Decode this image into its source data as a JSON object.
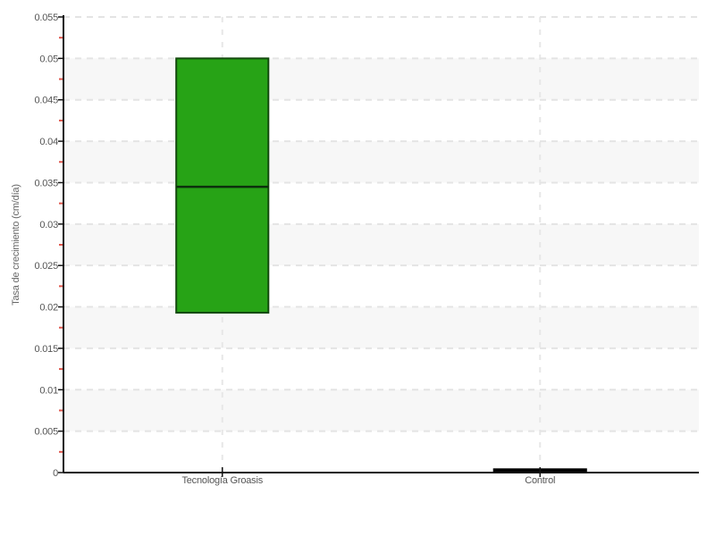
{
  "chart_data": {
    "type": "boxplot",
    "title": "",
    "xlabel": "",
    "ylabel": "Tasa de crecimiento (cm/día)",
    "categories": [
      "Tecnología Groasis",
      "Control"
    ],
    "series": [
      {
        "name": "Tecnología Groasis",
        "q1": 0.0193,
        "median": 0.0345,
        "q3": 0.05,
        "fill": "#27a316",
        "stroke": "#134a0d",
        "median_color": "#0d300d"
      },
      {
        "name": "Control",
        "q1": 0.0,
        "median": 0.0002,
        "q3": 0.0004,
        "fill": "#000000",
        "stroke": "#000000",
        "median_color": "#000000"
      }
    ],
    "ylim": [
      0,
      0.055
    ],
    "ytick_interval": 0.005,
    "ytick_labels": [
      "0",
      "0.005",
      "0.01",
      "0.015",
      "0.02",
      "0.025",
      "0.03",
      "0.035",
      "0.04",
      "0.045",
      "0.05",
      "0.055"
    ],
    "minor_tick_interval": 0.0025,
    "legend": "none",
    "grid": {
      "horizontal": "dashed",
      "vertical": "dashed-at-category-centers",
      "alternating_bands": true
    }
  },
  "colors": {
    "background": "#ffffff",
    "band": "#f7f7f7",
    "gridline": "#e4e4e4",
    "vertical_gridline": "#e7e7e7",
    "axis": "#141414",
    "tick_label": "#555555",
    "axis_title": "#666666",
    "minor_tick": "#e0564c"
  }
}
